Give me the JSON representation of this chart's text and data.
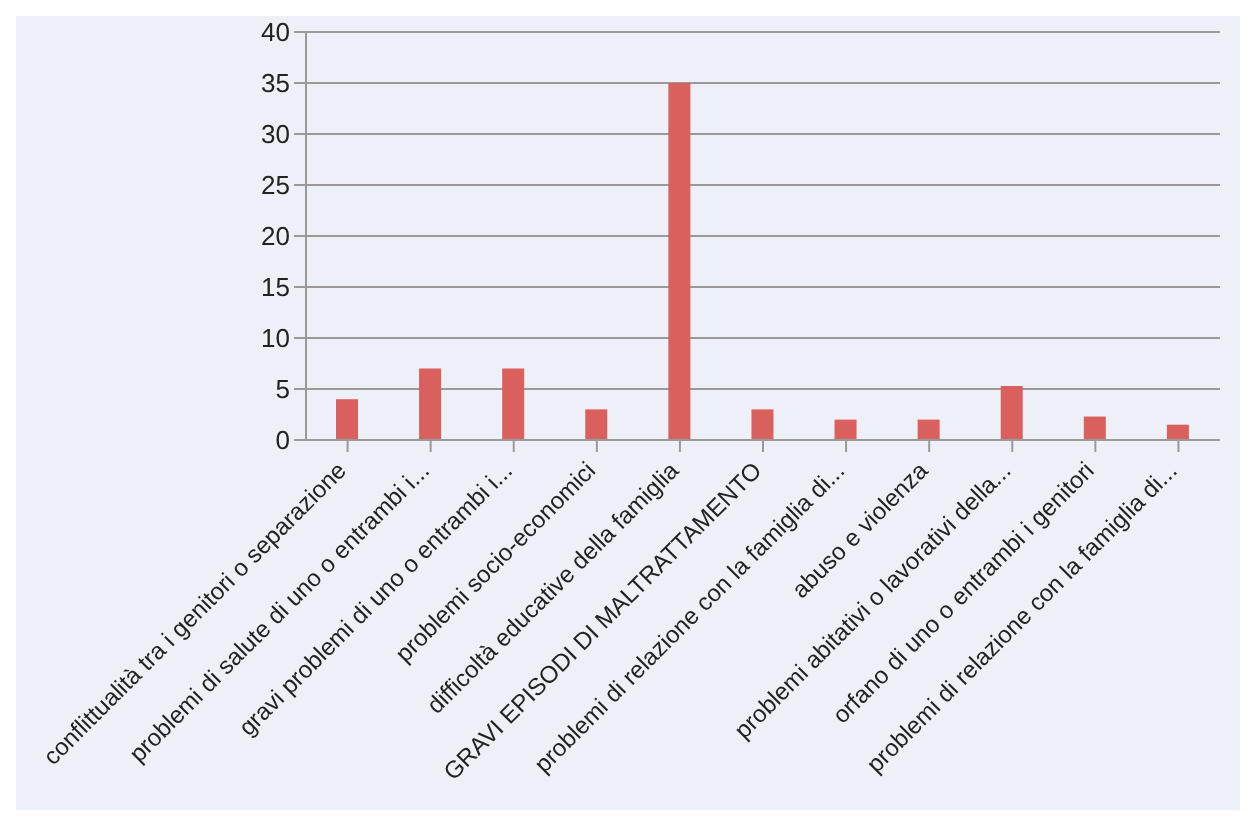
{
  "chart_data": {
    "type": "bar",
    "categories": [
      "conflittualità tra i genitori o separazione",
      "problemi di salute di uno o entrambi i...",
      "gravi problemi di uno o entrambi i...",
      "problemi socio-economici",
      "difficoltà educative della famiglia",
      "GRAVI EPISODI DI MALTRATTAMENTO",
      "problemi di relazione con  la famiglia di...",
      "abuso e violenza",
      "problemi abitativi o lavorativi della...",
      "orfano di uno o entrambi i genitori",
      "problemi di relazione con la famiglia di..."
    ],
    "values": [
      4,
      7,
      7,
      3,
      35,
      3,
      2,
      2,
      5.3,
      2.3,
      1.5
    ],
    "color": "#d9605c",
    "ylim": [
      0,
      40
    ],
    "yticks": [
      0,
      5,
      10,
      15,
      20,
      25,
      30,
      35,
      40
    ],
    "grid": "y"
  }
}
